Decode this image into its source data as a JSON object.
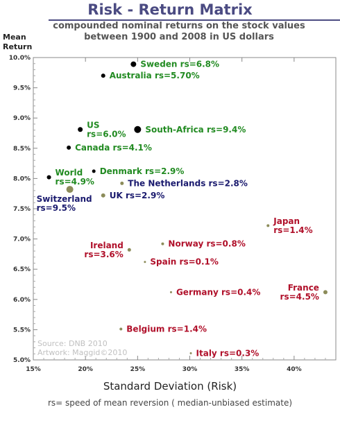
{
  "chart_data": {
    "type": "scatter",
    "title": "Risk - Return Matrix",
    "subtitle_lines": [
      "compounded nominal returns on the stock values",
      "between 1900 and 2008 in US dollars"
    ],
    "ylabel_lines": [
      "Mean",
      "Return"
    ],
    "xlabel": "Standard Deviation (Risk)",
    "footnote": "rs= speed of mean reversion ( median-unbiased estimate)",
    "xlim": [
      15,
      44
    ],
    "ylim": [
      5.0,
      10.0
    ],
    "x_ticks": [
      15,
      20,
      25,
      30,
      35,
      40
    ],
    "x_tick_labels": [
      "15%",
      "20%",
      "25%",
      "30%",
      "35%",
      "40%"
    ],
    "y_ticks": [
      5.0,
      5.5,
      6.0,
      6.5,
      7.0,
      7.5,
      8.0,
      8.5,
      9.0,
      9.5,
      10.0
    ],
    "y_tick_labels": [
      "5.0%",
      "5.5%",
      "6.0%",
      "6.5%",
      "7.0%",
      "7.5%",
      "8.0%",
      "8.5%",
      "9.0%",
      "9.5%",
      "10.0%"
    ],
    "source_lines": [
      "Source: DNB 2010",
      "Artwork: Maggid©2010"
    ],
    "colors": {
      "green": "#228b22",
      "navy": "#1a1a6e",
      "red": "#b0102a",
      "black": "#000000",
      "olive": "#8c8c5a"
    },
    "points": [
      {
        "name": "Sweden",
        "label_lines": [
          "Sweden rs=6.8%"
        ],
        "x": 24.6,
        "y": 9.89,
        "size": 4,
        "marker": "black",
        "color": "green",
        "label_anchor": "right"
      },
      {
        "name": "Australia",
        "label_lines": [
          "Australia rs=5.70%"
        ],
        "x": 21.7,
        "y": 9.7,
        "size": 3,
        "marker": "black",
        "color": "green",
        "label_anchor": "right"
      },
      {
        "name": "US",
        "label_lines": [
          "US",
          "rs=6.0%"
        ],
        "x": 19.5,
        "y": 8.81,
        "size": 3.5,
        "marker": "black",
        "color": "green",
        "label_anchor": "right"
      },
      {
        "name": "South-Africa",
        "label_lines": [
          "South-Africa rs=9.4%"
        ],
        "x": 25.0,
        "y": 8.81,
        "size": 5,
        "marker": "black",
        "color": "green",
        "label_anchor": "right"
      },
      {
        "name": "Canada",
        "label_lines": [
          "Canada rs=4.1%"
        ],
        "x": 18.4,
        "y": 8.51,
        "size": 3,
        "marker": "black",
        "color": "green",
        "label_anchor": "right"
      },
      {
        "name": "Denmark",
        "label_lines": [
          "Denmark rs=2.9%"
        ],
        "x": 20.8,
        "y": 8.12,
        "size": 2.5,
        "marker": "black",
        "color": "green",
        "label_anchor": "right"
      },
      {
        "name": "World",
        "label_lines": [
          "World",
          "rs=4.9%"
        ],
        "x": 16.5,
        "y": 8.02,
        "size": 3,
        "marker": "black",
        "color": "green",
        "label_anchor": "right"
      },
      {
        "name": "The Netherlands",
        "label_lines": [
          "The Netherlands rs=2.8%"
        ],
        "x": 23.5,
        "y": 7.92,
        "size": 2.5,
        "marker": "olive",
        "color": "navy",
        "label_anchor": "right"
      },
      {
        "name": "Switzerland",
        "label_lines": [
          "Switzerland",
          "rs=9.5%"
        ],
        "x": 18.5,
        "y": 7.82,
        "size": 5,
        "marker": "olive",
        "color": "navy",
        "label_anchor": "below-left"
      },
      {
        "name": "UK",
        "label_lines": [
          "UK rs=2.9%"
        ],
        "x": 21.7,
        "y": 7.72,
        "size": 3,
        "marker": "olive",
        "color": "navy",
        "label_anchor": "right"
      },
      {
        "name": "Japan",
        "label_lines": [
          "Japan",
          "rs=1.4%"
        ],
        "x": 37.5,
        "y": 7.22,
        "size": 2,
        "marker": "olive",
        "color": "red",
        "label_anchor": "right"
      },
      {
        "name": "Norway",
        "label_lines": [
          "Norway rs=0.8%"
        ],
        "x": 27.4,
        "y": 6.92,
        "size": 2,
        "marker": "olive",
        "color": "red",
        "label_anchor": "right"
      },
      {
        "name": "Ireland",
        "label_lines": [
          "Ireland",
          "rs=3.6%"
        ],
        "x": 24.2,
        "y": 6.82,
        "size": 2.5,
        "marker": "olive",
        "color": "red",
        "label_anchor": "left"
      },
      {
        "name": "Spain",
        "label_lines": [
          "Spain rs=0.1%"
        ],
        "x": 25.7,
        "y": 6.62,
        "size": 1.5,
        "marker": "olive",
        "color": "red",
        "label_anchor": "right"
      },
      {
        "name": "France",
        "label_lines": [
          "France",
          "rs=4.5%"
        ],
        "x": 43.0,
        "y": 6.12,
        "size": 3,
        "marker": "olive",
        "color": "red",
        "label_anchor": "left"
      },
      {
        "name": "Germany",
        "label_lines": [
          "Germany rs=0.4%"
        ],
        "x": 28.2,
        "y": 6.12,
        "size": 1.5,
        "marker": "olive",
        "color": "red",
        "label_anchor": "right"
      },
      {
        "name": "Belgium",
        "label_lines": [
          "Belgium rs=1.4%"
        ],
        "x": 23.4,
        "y": 5.51,
        "size": 2,
        "marker": "olive",
        "color": "red",
        "label_anchor": "right"
      },
      {
        "name": "Italy",
        "label_lines": [
          "Italy rs=0.3%"
        ],
        "x": 30.1,
        "y": 5.11,
        "size": 1.5,
        "marker": "olive",
        "color": "red",
        "label_anchor": "right"
      }
    ]
  }
}
